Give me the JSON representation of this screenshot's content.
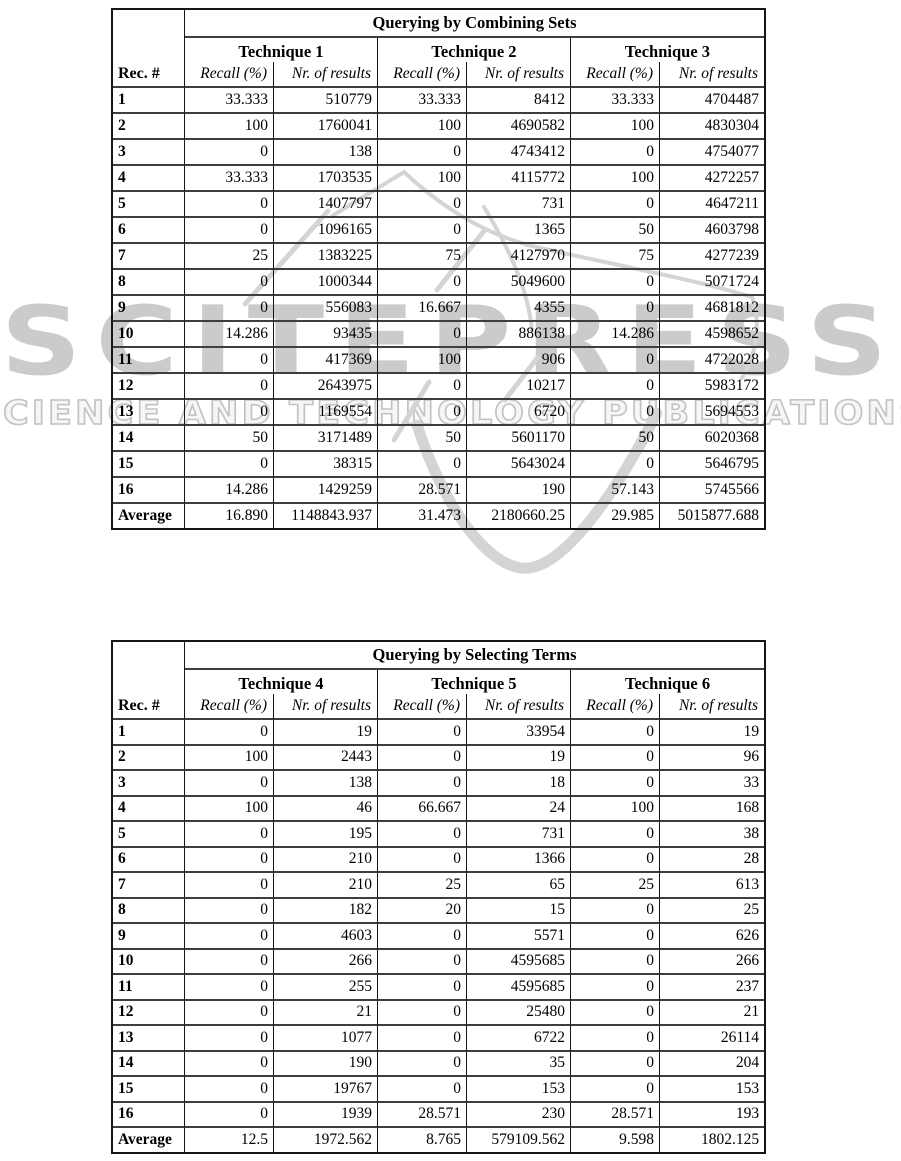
{
  "watermark": {
    "wordmark": "SCITEPRESS",
    "tagline": "SCIENCE AND TECHNOLOGY PUBLICATIONS",
    "color": "#cbcbcb"
  },
  "tables": [
    {
      "title": "Querying by Combining Sets",
      "rec_header": "Rec. #",
      "techniques": [
        "Technique 1",
        "Technique 2",
        "Technique 3"
      ],
      "col_labels": {
        "recall": "Recall (%)",
        "results": "Nr. of results"
      },
      "rows": [
        {
          "rec": "1",
          "cells": [
            "33.333",
            "510779",
            "33.333",
            "8412",
            "33.333",
            "4704487"
          ]
        },
        {
          "rec": "2",
          "cells": [
            "100",
            "1760041",
            "100",
            "4690582",
            "100",
            "4830304"
          ]
        },
        {
          "rec": "3",
          "cells": [
            "0",
            "138",
            "0",
            "4743412",
            "0",
            "4754077"
          ]
        },
        {
          "rec": "4",
          "cells": [
            "33.333",
            "1703535",
            "100",
            "4115772",
            "100",
            "4272257"
          ]
        },
        {
          "rec": "5",
          "cells": [
            "0",
            "1407797",
            "0",
            "731",
            "0",
            "4647211"
          ]
        },
        {
          "rec": "6",
          "cells": [
            "0",
            "1096165",
            "0",
            "1365",
            "50",
            "4603798"
          ]
        },
        {
          "rec": "7",
          "cells": [
            "25",
            "1383225",
            "75",
            "4127970",
            "75",
            "4277239"
          ]
        },
        {
          "rec": "8",
          "cells": [
            "0",
            "1000344",
            "0",
            "5049600",
            "0",
            "5071724"
          ]
        },
        {
          "rec": "9",
          "cells": [
            "0",
            "556083",
            "16.667",
            "4355",
            "0",
            "4681812"
          ]
        },
        {
          "rec": "10",
          "cells": [
            "14.286",
            "93435",
            "0",
            "886138",
            "14.286",
            "4598652"
          ]
        },
        {
          "rec": "11",
          "cells": [
            "0",
            "417369",
            "100",
            "906",
            "0",
            "4722028"
          ]
        },
        {
          "rec": "12",
          "cells": [
            "0",
            "2643975",
            "0",
            "10217",
            "0",
            "5983172"
          ]
        },
        {
          "rec": "13",
          "cells": [
            "0",
            "1169554",
            "0",
            "6720",
            "0",
            "5694553"
          ]
        },
        {
          "rec": "14",
          "cells": [
            "50",
            "3171489",
            "50",
            "5601170",
            "50",
            "6020368"
          ]
        },
        {
          "rec": "15",
          "cells": [
            "0",
            "38315",
            "0",
            "5643024",
            "0",
            "5646795"
          ]
        },
        {
          "rec": "16",
          "cells": [
            "14.286",
            "1429259",
            "28.571",
            "190",
            "57.143",
            "5745566"
          ]
        }
      ],
      "average": {
        "rec": "Average",
        "cells": [
          "16.890",
          "1148843.937",
          "31.473",
          "2180660.25",
          "29.985",
          "5015877.688"
        ]
      }
    },
    {
      "title": "Querying by Selecting Terms",
      "rec_header": "Rec. #",
      "techniques": [
        "Technique 4",
        "Technique 5",
        "Technique 6"
      ],
      "col_labels": {
        "recall": "Recall (%)",
        "results": "Nr. of results"
      },
      "rows": [
        {
          "rec": "1",
          "cells": [
            "0",
            "19",
            "0",
            "33954",
            "0",
            "19"
          ]
        },
        {
          "rec": "2",
          "cells": [
            "100",
            "2443",
            "0",
            "19",
            "0",
            "96"
          ]
        },
        {
          "rec": "3",
          "cells": [
            "0",
            "138",
            "0",
            "18",
            "0",
            "33"
          ]
        },
        {
          "rec": "4",
          "cells": [
            "100",
            "46",
            "66.667",
            "24",
            "100",
            "168"
          ]
        },
        {
          "rec": "5",
          "cells": [
            "0",
            "195",
            "0",
            "731",
            "0",
            "38"
          ]
        },
        {
          "rec": "6",
          "cells": [
            "0",
            "210",
            "0",
            "1366",
            "0",
            "28"
          ]
        },
        {
          "rec": "7",
          "cells": [
            "0",
            "210",
            "25",
            "65",
            "25",
            "613"
          ]
        },
        {
          "rec": "8",
          "cells": [
            "0",
            "182",
            "20",
            "15",
            "0",
            "25"
          ]
        },
        {
          "rec": "9",
          "cells": [
            "0",
            "4603",
            "0",
            "5571",
            "0",
            "626"
          ]
        },
        {
          "rec": "10",
          "cells": [
            "0",
            "266",
            "0",
            "4595685",
            "0",
            "266"
          ]
        },
        {
          "rec": "11",
          "cells": [
            "0",
            "255",
            "0",
            "4595685",
            "0",
            "237"
          ]
        },
        {
          "rec": "12",
          "cells": [
            "0",
            "21",
            "0",
            "25480",
            "0",
            "21"
          ]
        },
        {
          "rec": "13",
          "cells": [
            "0",
            "1077",
            "0",
            "6722",
            "0",
            "26114"
          ]
        },
        {
          "rec": "14",
          "cells": [
            "0",
            "190",
            "0",
            "35",
            "0",
            "204"
          ]
        },
        {
          "rec": "15",
          "cells": [
            "0",
            "19767",
            "0",
            "153",
            "0",
            "153"
          ]
        },
        {
          "rec": "16",
          "cells": [
            "0",
            "1939",
            "28.571",
            "230",
            "28.571",
            "193"
          ]
        }
      ],
      "average": {
        "rec": "Average",
        "cells": [
          "12.5",
          "1972.562",
          "8.765",
          "579109.562",
          "9.598",
          "1802.125"
        ]
      }
    }
  ]
}
